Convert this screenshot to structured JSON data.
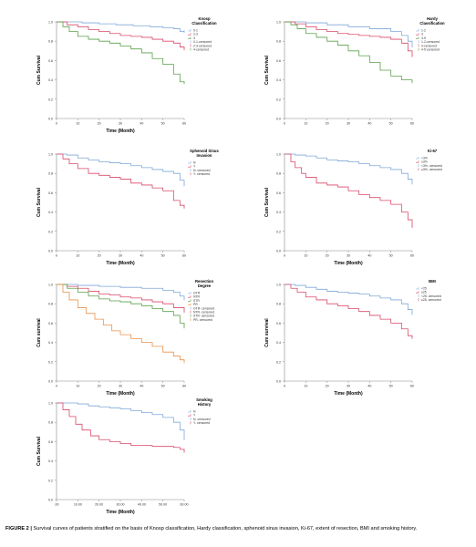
{
  "figure": {
    "label": "FIGURE 2 |",
    "caption": " Survival curves of patients stratified on the basis of Knosp classification, Hardy classification, sphenoid sinus invasion, Ki-67, extent of resection, BMI and smoking history."
  },
  "chart_data": [
    {
      "type": "line",
      "id": "knosp",
      "title": "Knosp Classification",
      "xlabel": "Time (Month)",
      "ylabel": "Cum Survival",
      "xlim": [
        0,
        60
      ],
      "ylim": [
        0,
        1
      ],
      "x_ticks": [
        "0",
        "10",
        "20",
        "30",
        "40",
        "50",
        "60"
      ],
      "y_ticks": [
        "0.0",
        "0.2",
        "0.4",
        "0.6",
        "0.8",
        "1.0"
      ],
      "legend": [
        "0-1",
        "2-3",
        "4",
        "0-1-censored",
        "2-3-censored",
        "4-censored"
      ],
      "series": [
        {
          "name": "0-1",
          "color": "#7fa8d8",
          "x": [
            0,
            12,
            20,
            28,
            36,
            44,
            50,
            55,
            58,
            60
          ],
          "y": [
            1.0,
            0.99,
            0.98,
            0.97,
            0.96,
            0.95,
            0.94,
            0.93,
            0.9,
            0.9
          ]
        },
        {
          "name": "2-3",
          "color": "#d94a6a",
          "x": [
            0,
            5,
            10,
            15,
            20,
            25,
            30,
            35,
            40,
            45,
            50,
            55,
            58,
            60
          ],
          "y": [
            1.0,
            0.97,
            0.95,
            0.92,
            0.9,
            0.88,
            0.86,
            0.85,
            0.84,
            0.82,
            0.8,
            0.78,
            0.74,
            0.72
          ]
        },
        {
          "name": "4",
          "color": "#5aa04a",
          "x": [
            0,
            3,
            6,
            10,
            15,
            20,
            25,
            30,
            35,
            40,
            45,
            50,
            55,
            58,
            60
          ],
          "y": [
            1.0,
            0.95,
            0.9,
            0.85,
            0.82,
            0.8,
            0.78,
            0.75,
            0.72,
            0.68,
            0.62,
            0.56,
            0.46,
            0.38,
            0.37
          ]
        }
      ]
    },
    {
      "type": "line",
      "id": "hardy",
      "title": "Hardy Classification",
      "xlabel": "",
      "ylabel": "Cum Survival",
      "xlim": [
        0,
        60
      ],
      "ylim": [
        0,
        1
      ],
      "x_ticks": [
        "0",
        "10",
        "20",
        "30",
        "40",
        "50",
        "60"
      ],
      "y_ticks": [
        "0.0",
        "0.2",
        "0.4",
        "0.6",
        "0.8",
        "1.0"
      ],
      "legend": [
        "1-2",
        "3",
        "4-5",
        "1-2-censored",
        "3-censored",
        "4-5-censored"
      ],
      "series": [
        {
          "name": "1-2",
          "color": "#7fa8d8",
          "x": [
            0,
            10,
            20,
            30,
            40,
            50,
            55,
            58,
            60
          ],
          "y": [
            1.0,
            0.99,
            0.97,
            0.95,
            0.93,
            0.9,
            0.86,
            0.8,
            0.75
          ]
        },
        {
          "name": "3",
          "color": "#d94a6a",
          "x": [
            0,
            5,
            10,
            15,
            20,
            25,
            30,
            35,
            40,
            45,
            50,
            55,
            58,
            60
          ],
          "y": [
            1.0,
            0.98,
            0.95,
            0.92,
            0.9,
            0.88,
            0.87,
            0.86,
            0.85,
            0.84,
            0.82,
            0.78,
            0.7,
            0.65
          ]
        },
        {
          "name": "4-5",
          "color": "#5aa04a",
          "x": [
            0,
            3,
            6,
            10,
            15,
            20,
            25,
            30,
            35,
            40,
            45,
            50,
            55,
            60
          ],
          "y": [
            1.0,
            0.97,
            0.93,
            0.88,
            0.84,
            0.8,
            0.76,
            0.7,
            0.65,
            0.58,
            0.5,
            0.44,
            0.4,
            0.38
          ]
        }
      ]
    },
    {
      "type": "line",
      "id": "sphenoid",
      "title": "Sphenoid Sinus Invasion",
      "xlabel": "Time (Month)",
      "ylabel": "Cum Survival",
      "xlim": [
        0,
        60
      ],
      "ylim": [
        0,
        1
      ],
      "x_ticks": [
        "0",
        "10",
        "20",
        "30",
        "40",
        "50",
        "60"
      ],
      "y_ticks": [
        "0.0",
        "0.2",
        "0.4",
        "0.6",
        "0.8",
        "1.0"
      ],
      "legend": [
        "N",
        "Y",
        "N- censored",
        "Y- censored"
      ],
      "series": [
        {
          "name": "N",
          "color": "#7fa8d8",
          "x": [
            0,
            5,
            10,
            15,
            20,
            25,
            30,
            35,
            40,
            45,
            50,
            55,
            58,
            60
          ],
          "y": [
            1.0,
            0.99,
            0.96,
            0.94,
            0.92,
            0.91,
            0.9,
            0.88,
            0.86,
            0.84,
            0.82,
            0.8,
            0.73,
            0.68
          ]
        },
        {
          "name": "Y",
          "color": "#d94a6a",
          "x": [
            0,
            3,
            6,
            10,
            15,
            20,
            25,
            30,
            35,
            40,
            45,
            50,
            55,
            58,
            60
          ],
          "y": [
            1.0,
            0.95,
            0.9,
            0.85,
            0.8,
            0.78,
            0.76,
            0.74,
            0.7,
            0.68,
            0.65,
            0.62,
            0.52,
            0.47,
            0.45
          ]
        }
      ]
    },
    {
      "type": "line",
      "id": "ki67",
      "title": "Ki-67",
      "xlabel": "Time (Month)",
      "ylabel": "Cum Survival",
      "xlim": [
        0,
        60
      ],
      "ylim": [
        0,
        1
      ],
      "x_ticks": [
        "0",
        "10",
        "20",
        "30",
        "40",
        "50",
        "60"
      ],
      "y_ticks": [
        "0.0",
        "0.2",
        "0.4",
        "0.6",
        "0.8",
        "1.0"
      ],
      "legend": [
        "<3%",
        "≥3%",
        "<3%- censored",
        "≥3%- censored"
      ],
      "series": [
        {
          "name": "<3%",
          "color": "#7fa8d8",
          "x": [
            0,
            5,
            10,
            15,
            20,
            25,
            30,
            35,
            40,
            45,
            50,
            55,
            58,
            60
          ],
          "y": [
            1.0,
            0.99,
            0.98,
            0.96,
            0.94,
            0.93,
            0.92,
            0.9,
            0.88,
            0.86,
            0.84,
            0.8,
            0.74,
            0.7
          ]
        },
        {
          "name": "≥3%",
          "color": "#d94a6a",
          "x": [
            0,
            3,
            5,
            8,
            10,
            15,
            20,
            25,
            30,
            35,
            40,
            45,
            50,
            55,
            58,
            60
          ],
          "y": [
            1.0,
            0.92,
            0.86,
            0.8,
            0.76,
            0.7,
            0.68,
            0.66,
            0.62,
            0.58,
            0.55,
            0.52,
            0.48,
            0.4,
            0.32,
            0.25
          ]
        }
      ]
    },
    {
      "type": "line",
      "id": "resection",
      "title": "Resection Degree",
      "xlabel": "Time (Month)",
      "ylabel": "Cum survival",
      "xlim": [
        0,
        60
      ],
      "ylim": [
        0,
        1
      ],
      "x_ticks": [
        "0",
        "10",
        "20",
        "30",
        "40",
        "50",
        "60"
      ],
      "y_ticks": [
        "0.0",
        "0.2",
        "0.4",
        "0.6",
        "0.8",
        "1.0"
      ],
      "legend": [
        "GTR",
        "NTR",
        "STR",
        "PR",
        "GTR- censored",
        "NTR- censored",
        "STR- censored",
        "PR- censored"
      ],
      "series": [
        {
          "name": "GTR",
          "color": "#7fa8d8",
          "x": [
            0,
            10,
            20,
            30,
            40,
            50,
            55,
            58,
            60
          ],
          "y": [
            1.0,
            0.99,
            0.98,
            0.97,
            0.96,
            0.94,
            0.92,
            0.88,
            0.85
          ]
        },
        {
          "name": "NTR",
          "color": "#d94a6a",
          "x": [
            0,
            5,
            10,
            15,
            20,
            25,
            30,
            35,
            40,
            45,
            50,
            55,
            60
          ],
          "y": [
            1.0,
            0.98,
            0.96,
            0.93,
            0.9,
            0.89,
            0.87,
            0.86,
            0.84,
            0.82,
            0.8,
            0.76,
            0.72
          ]
        },
        {
          "name": "STR",
          "color": "#5aa04a",
          "x": [
            0,
            5,
            10,
            15,
            20,
            25,
            30,
            35,
            40,
            45,
            50,
            55,
            58,
            60
          ],
          "y": [
            1.0,
            0.96,
            0.92,
            0.88,
            0.85,
            0.83,
            0.82,
            0.8,
            0.78,
            0.75,
            0.72,
            0.68,
            0.6,
            0.56
          ]
        },
        {
          "name": "PR",
          "color": "#e8914a",
          "x": [
            0,
            3,
            6,
            10,
            14,
            18,
            22,
            26,
            30,
            35,
            40,
            45,
            50,
            55,
            58,
            60
          ],
          "y": [
            1.0,
            0.92,
            0.84,
            0.76,
            0.7,
            0.64,
            0.58,
            0.52,
            0.48,
            0.44,
            0.4,
            0.36,
            0.3,
            0.26,
            0.22,
            0.2
          ]
        }
      ]
    },
    {
      "type": "line",
      "id": "bmi",
      "title": "BMI",
      "xlabel": "Time (Month)",
      "ylabel": "Cum survival",
      "xlim": [
        0,
        60
      ],
      "ylim": [
        0,
        1
      ],
      "x_ticks": [
        "0",
        "10",
        "20",
        "30",
        "40",
        "50",
        "60"
      ],
      "y_ticks": [
        "0.0",
        "0.2",
        "0.4",
        "0.6",
        "0.8",
        "1.0"
      ],
      "legend": [
        "<25",
        "≥25",
        "<25- censored",
        "≥25- censored"
      ],
      "series": [
        {
          "name": "<25",
          "color": "#7fa8d8",
          "x": [
            0,
            5,
            10,
            15,
            20,
            25,
            30,
            35,
            40,
            45,
            50,
            55,
            58,
            60
          ],
          "y": [
            1.0,
            0.99,
            0.97,
            0.95,
            0.93,
            0.92,
            0.91,
            0.9,
            0.88,
            0.86,
            0.84,
            0.8,
            0.74,
            0.7
          ]
        },
        {
          "name": "≥25",
          "color": "#d94a6a",
          "x": [
            0,
            3,
            6,
            10,
            15,
            20,
            25,
            30,
            35,
            40,
            45,
            50,
            55,
            58,
            60
          ],
          "y": [
            1.0,
            0.96,
            0.92,
            0.87,
            0.84,
            0.8,
            0.78,
            0.75,
            0.72,
            0.68,
            0.64,
            0.6,
            0.54,
            0.47,
            0.45
          ]
        }
      ]
    },
    {
      "type": "line",
      "id": "smoking",
      "title": "Smoking History",
      "xlabel": "Time (Month)",
      "ylabel": "Cum Survival",
      "xlim": [
        0,
        60
      ],
      "ylim": [
        0,
        1
      ],
      "x_ticks": [
        ".00",
        "10.00",
        "20.00",
        "30.00",
        "40.00",
        "50.00",
        "60.00"
      ],
      "y_ticks": [
        "0.0",
        "0.2",
        "0.4",
        "0.6",
        "0.8",
        "1.0"
      ],
      "legend": [
        "N",
        "Y",
        "N- censored",
        "Y- censored"
      ],
      "series": [
        {
          "name": "N",
          "color": "#7fa8d8",
          "x": [
            0,
            5,
            10,
            15,
            20,
            25,
            30,
            35,
            40,
            45,
            50,
            55,
            58,
            60
          ],
          "y": [
            1.0,
            1.0,
            0.99,
            0.97,
            0.96,
            0.95,
            0.94,
            0.92,
            0.9,
            0.88,
            0.85,
            0.8,
            0.72,
            0.63
          ]
        },
        {
          "name": "Y",
          "color": "#d94a6a",
          "x": [
            0,
            3,
            6,
            9,
            12,
            16,
            20,
            25,
            30,
            35,
            40,
            45,
            50,
            55,
            58,
            60
          ],
          "y": [
            1.0,
            0.93,
            0.86,
            0.78,
            0.72,
            0.66,
            0.62,
            0.6,
            0.58,
            0.56,
            0.56,
            0.55,
            0.55,
            0.54,
            0.52,
            0.5
          ]
        }
      ]
    }
  ]
}
